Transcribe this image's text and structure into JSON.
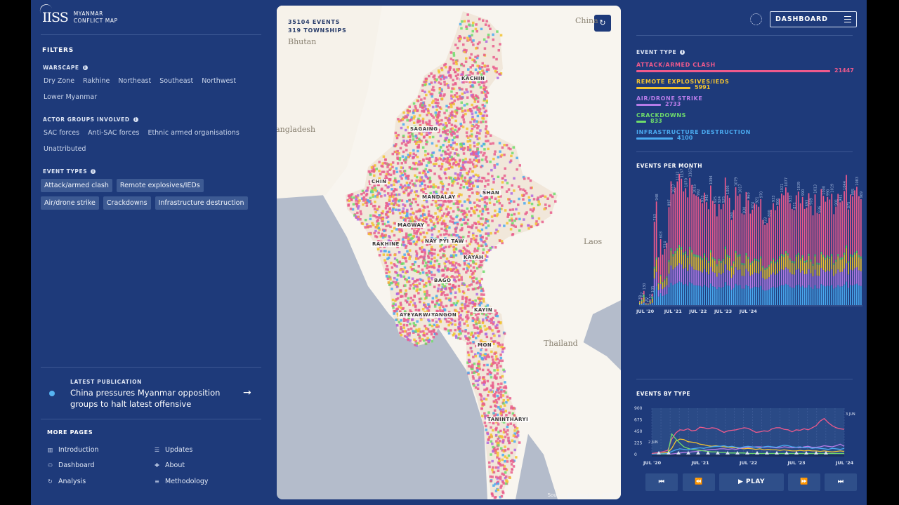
{
  "app": {
    "logo": "IISS",
    "title_line1": "MYANMAR",
    "title_line2": "CONFLICT MAP"
  },
  "filters": {
    "title": "FILTERS",
    "warscape": {
      "label": "WARSCAPE",
      "options": [
        "Dry Zone",
        "Rakhine",
        "Northeast",
        "Southeast",
        "Northwest",
        "Lower Myanmar"
      ]
    },
    "actors": {
      "label": "ACTOR GROUPS INVOLVED",
      "options": [
        "SAC forces",
        "Anti-SAC forces",
        "Ethnic armed organisations",
        "Unattributed"
      ]
    },
    "event_types": {
      "label": "EVENT TYPES",
      "options": [
        "Attack/armed clash",
        "Remote explosives/IEDs",
        "Air/drone strike",
        "Crackdowns",
        "Infrastructure destruction"
      ]
    }
  },
  "publication": {
    "label": "LATEST PUBLICATION",
    "title": "China pressures Myanmar opposition groups to halt latest offensive",
    "arrow": "→"
  },
  "more_pages": {
    "title": "MORE PAGES",
    "items": [
      {
        "label": "Introduction",
        "icon": "bars-icon",
        "glyph": "▥"
      },
      {
        "label": "Updates",
        "icon": "list-icon",
        "glyph": "☰"
      },
      {
        "label": "Dashboard",
        "icon": "people-icon",
        "glyph": "⚇"
      },
      {
        "label": "About",
        "icon": "plus-icon",
        "glyph": "✚"
      },
      {
        "label": "Analysis",
        "icon": "refresh-icon",
        "glyph": "↻"
      },
      {
        "label": "Methodology",
        "icon": "lines-icon",
        "glyph": "≡"
      }
    ]
  },
  "map": {
    "events": "35104 EVENTS",
    "townships": "319 TOWNSHIPS",
    "reset_icon": "↻",
    "countries": [
      "China",
      "Bhutan",
      "Bangladesh",
      "Laos",
      "Thailand"
    ],
    "regions": [
      "KACHIN",
      "SAGAING",
      "CHIN",
      "MANDALAY",
      "SHAN",
      "MAGWAY",
      "RAKHINE",
      "NAY PYI TAW",
      "KAYAH",
      "BAGO",
      "KAYIN",
      "AYEYARWADY",
      "YANGON",
      "MON",
      "TANINTHARYI"
    ],
    "source_prefix": "Source: ",
    "source_link": "IISS Analysis",
    "source_suffix": ", ACLED",
    "colors": {
      "attack": "#e95d8c",
      "ied": "#f2c230",
      "air": "#b06ae0",
      "crackdown": "#6fdc6b",
      "infra": "#4aaaf0"
    }
  },
  "header": {
    "dashboard": "DASHBOARD"
  },
  "event_type_panel": {
    "title": "EVENT TYPE",
    "items": [
      {
        "name": "ATTACK/ARMED CLASH",
        "value": "21447",
        "color": "#ef5a8c",
        "fraction": 1.0
      },
      {
        "name": "REMOTE EXPLOSIVES/IEDS",
        "value": "5991",
        "color": "#f2c230",
        "fraction": 0.28
      },
      {
        "name": "AIR/DRONE STRIKE",
        "value": "2733",
        "color": "#b77ce8",
        "fraction": 0.127
      },
      {
        "name": "CRACKDOWNS",
        "value": "833",
        "color": "#6fdc6b",
        "fraction": 0.039
      },
      {
        "name": "INFRASTRUCTURE DESTRUCTION",
        "value": "4100",
        "color": "#4aaaf0",
        "fraction": 0.19
      }
    ]
  },
  "events_per_month": {
    "title": "EVENTS PER MONTH",
    "xticks": [
      "JUL '20",
      "JUL '21",
      "JUL '22",
      "JUL '23",
      "JUL '24"
    ]
  },
  "events_by_type": {
    "title": "EVENTS BY TYPE",
    "yticks": [
      "900",
      "675",
      "450",
      "225",
      "0"
    ],
    "xticks": [
      "JUL '20",
      "JUL '21",
      "JUL '22",
      "JUL '23",
      "JUL '24"
    ],
    "side_left": "2 JUN",
    "side_right": "3 JUN"
  },
  "controls": {
    "first": "⏮",
    "back": "⏪",
    "play": "▶  PLAY",
    "forward": "⏩",
    "last": "⏭"
  },
  "chart_data": [
    {
      "type": "bar",
      "title": "EVENTS PER MONTH",
      "x_start": "2020-07",
      "xlabel": "",
      "ylabel": "",
      "values": [
        39,
        67,
        130,
        20,
        17,
        52,
        105,
        763,
        948,
        437,
        603,
        462,
        514,
        571,
        897,
        1133,
        1017,
        1075,
        1132,
        1201,
        1157,
        1040,
        1070,
        986,
        1163,
        1099,
        1015,
        1003,
        992,
        971,
        933,
        1029,
        942,
        877,
        1094,
        954,
        925,
        812,
        924,
        877,
        925,
        1167,
        1005,
        982,
        780,
        870,
        1079,
        1000,
        1017,
        839,
        830,
        1034,
        960,
        837,
        874,
        931,
        921,
        900,
        970,
        780,
        733,
        750,
        800,
        873,
        933,
        868,
        906,
        974,
        1021,
        1005,
        1077,
        1030,
        933,
        880,
        871,
        1005,
        1039,
        931,
        990,
        880,
        893,
        1024,
        909,
        821,
        1013,
        844,
        836,
        1062,
        1000,
        946,
        990,
        966,
        1019,
        832,
        901,
        1018,
        941,
        953,
        1044,
        1191,
        875,
        1012,
        995,
        1050,
        1083,
        996,
        969
      ],
      "ylim": [
        0,
        1200
      ]
    },
    {
      "type": "line",
      "title": "EVENTS BY TYPE",
      "x_start": "2020-07",
      "yticks": [
        0,
        225,
        450,
        675,
        900
      ],
      "ylim": [
        0,
        900
      ],
      "series": [
        {
          "name": "Attack/armed clash",
          "color": "#ef5a8c",
          "values": [
            20,
            30,
            40,
            60,
            80,
            300,
            420,
            480,
            470,
            500,
            460,
            470,
            530,
            520,
            500,
            520,
            510,
            470,
            430,
            460,
            470,
            480,
            500,
            520,
            510,
            470,
            430,
            440,
            460,
            450,
            500,
            520,
            520,
            490,
            480,
            440,
            480,
            470,
            500,
            480,
            520,
            560,
            650,
            700,
            620,
            560,
            520,
            500,
            490
          ]
        },
        {
          "name": "Remote explosives/IEDs",
          "color": "#f2c230",
          "values": [
            5,
            10,
            20,
            30,
            40,
            120,
            260,
            300,
            290,
            250,
            240,
            230,
            200,
            190,
            170,
            160,
            170,
            160,
            150,
            140,
            140,
            130,
            120,
            110,
            120,
            110,
            100,
            110,
            90,
            100,
            90,
            90,
            80,
            90,
            80,
            70,
            70,
            80,
            70,
            80,
            70,
            70,
            60,
            70,
            60,
            50,
            60,
            70,
            60
          ]
        },
        {
          "name": "Air/drone strike",
          "color": "#b77ce8",
          "values": [
            0,
            0,
            5,
            5,
            5,
            10,
            20,
            30,
            40,
            40,
            50,
            60,
            70,
            80,
            90,
            100,
            100,
            110,
            110,
            100,
            110,
            100,
            120,
            130,
            140,
            140,
            150,
            150,
            140,
            150,
            140,
            130,
            130,
            150,
            140,
            130,
            140,
            130,
            150,
            160,
            140,
            140,
            150,
            170,
            160,
            150,
            170,
            200,
            160
          ]
        },
        {
          "name": "Crackdowns",
          "color": "#6fdc6b",
          "values": [
            5,
            5,
            10,
            10,
            15,
            400,
            300,
            220,
            150,
            120,
            100,
            90,
            80,
            70,
            60,
            50,
            50,
            40,
            40,
            30,
            30,
            30,
            30,
            30,
            20,
            20,
            20,
            20,
            20,
            20,
            20,
            20,
            20,
            20,
            20,
            20,
            20,
            20,
            20,
            20,
            20,
            20,
            20,
            20,
            20,
            20,
            20,
            20,
            20
          ]
        },
        {
          "name": "Infrastructure destruction",
          "color": "#4aaaf0",
          "values": [
            5,
            10,
            15,
            15,
            20,
            60,
            90,
            110,
            100,
            90,
            110,
            120,
            130,
            120,
            140,
            150,
            160,
            160,
            170,
            150,
            160,
            140,
            130,
            150,
            160,
            150,
            140,
            130,
            150,
            160,
            150,
            140,
            160,
            180,
            170,
            150,
            140,
            150,
            130,
            140,
            120,
            130,
            120,
            110,
            100,
            120,
            110,
            100,
            120
          ]
        }
      ]
    }
  ]
}
